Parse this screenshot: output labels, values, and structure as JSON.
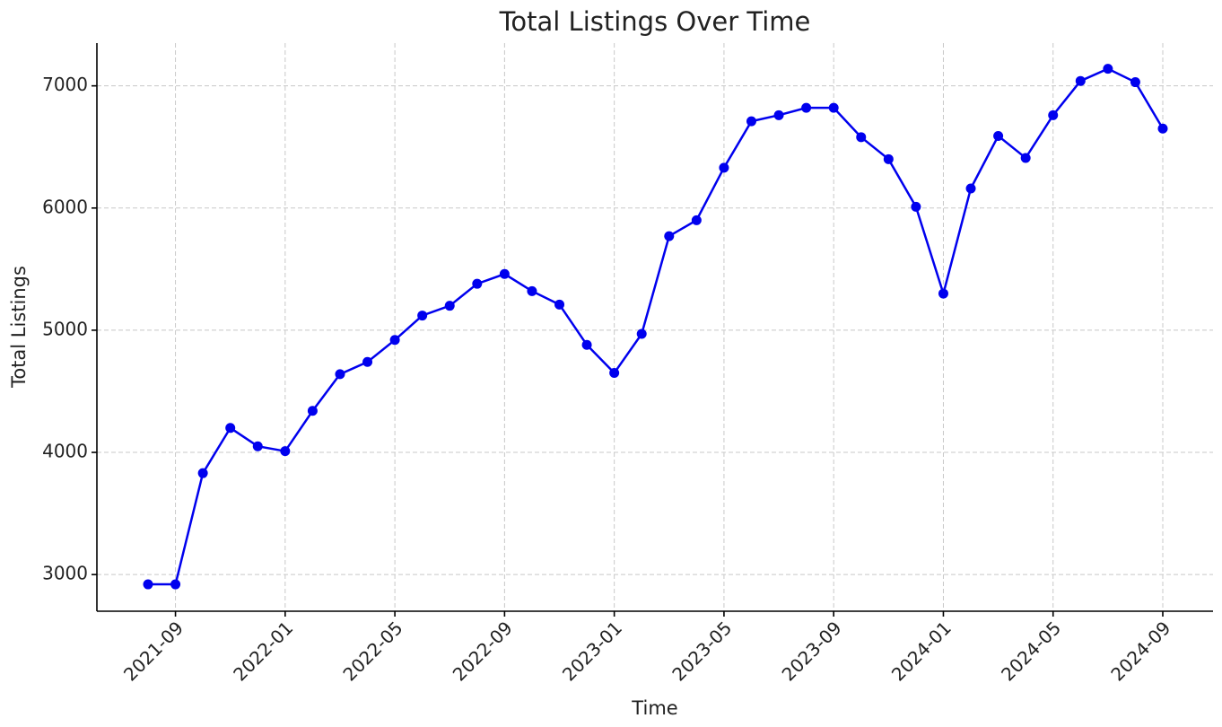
{
  "chart_data": {
    "type": "line",
    "title": "Total Listings Over Time",
    "x_label": "Time",
    "y_label": "Total Listings",
    "x": [
      "2021-08",
      "2021-09",
      "2021-10",
      "2021-11",
      "2021-12",
      "2022-01",
      "2022-02",
      "2022-03",
      "2022-04",
      "2022-05",
      "2022-06",
      "2022-07",
      "2022-08",
      "2022-09",
      "2022-10",
      "2022-11",
      "2022-12",
      "2023-01",
      "2023-02",
      "2023-03",
      "2023-04",
      "2023-05",
      "2023-06",
      "2023-07",
      "2023-08",
      "2023-09",
      "2023-10",
      "2023-11",
      "2023-12",
      "2024-01",
      "2024-02",
      "2024-03",
      "2024-04",
      "2024-05",
      "2024-06",
      "2024-07",
      "2024-08",
      "2024-09"
    ],
    "series": [
      {
        "name": "Total Listings",
        "color": "#0000ee",
        "values": [
          2920,
          2920,
          3830,
          4200,
          4050,
          4010,
          4340,
          4640,
          4740,
          4920,
          5120,
          5200,
          5380,
          5460,
          5320,
          5210,
          4880,
          4650,
          4970,
          5770,
          5900,
          6330,
          6710,
          6760,
          6820,
          6820,
          6580,
          6400,
          6010,
          5300,
          6160,
          6590,
          6410,
          6760,
          7040,
          7140,
          7030,
          6650
        ]
      }
    ],
    "xticks": [
      "2021-09",
      "2022-01",
      "2022-05",
      "2022-09",
      "2023-01",
      "2023-05",
      "2023-09",
      "2024-01",
      "2024-05",
      "2024-09"
    ],
    "ylim": [
      2700,
      7350
    ],
    "yticks": [
      3000,
      4000,
      5000,
      6000,
      7000
    ],
    "grid": true
  }
}
